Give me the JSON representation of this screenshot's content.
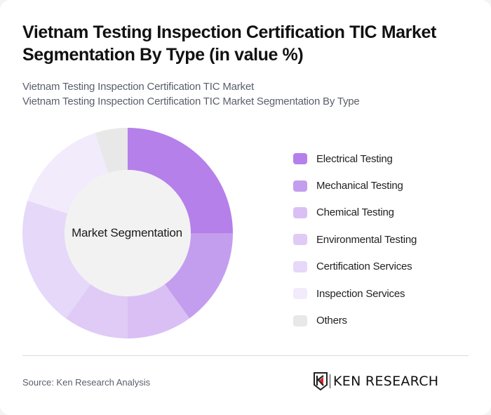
{
  "header": {
    "title": "Vietnam Testing Inspection Certification TIC Market Segmentation By Type (in value %)",
    "subtitle_line1": "Vietnam Testing Inspection Certification TIC Market",
    "subtitle_line2": "Vietnam Testing Inspection Certification TIC Market Segmentation By Type"
  },
  "chart": {
    "center_label": "Market Segmentation"
  },
  "legend": [
    {
      "label": "Electrical Testing",
      "color": "#B580EA"
    },
    {
      "label": "Mechanical Testing",
      "color": "#C49EEE"
    },
    {
      "label": "Chemical Testing",
      "color": "#DABFF5"
    },
    {
      "label": "Environmental Testing",
      "color": "#E0CAF6"
    },
    {
      "label": "Certification Services",
      "color": "#E6D8F9"
    },
    {
      "label": "Inspection Services",
      "color": "#F2EBFC"
    },
    {
      "label": "Others",
      "color": "#E8E8E8"
    }
  ],
  "footer": {
    "source": "Source: Ken Research Analysis",
    "logo_text": "KEN RESEARCH"
  },
  "chart_data": {
    "type": "pie",
    "variant": "donut",
    "title": "Vietnam Testing Inspection Certification TIC Market Segmentation By Type (in value %)",
    "center_label": "Market Segmentation",
    "categories": [
      "Electrical Testing",
      "Mechanical Testing",
      "Chemical Testing",
      "Environmental Testing",
      "Certification Services",
      "Inspection Services",
      "Others"
    ],
    "values": [
      25,
      15,
      10,
      10,
      20,
      15,
      5
    ],
    "unit": "%",
    "colors": [
      "#B580EA",
      "#C49EEE",
      "#DABFF5",
      "#E0CAF6",
      "#E6D8F9",
      "#F2EBFC",
      "#E8E8E8"
    ],
    "start_angle": "12 o'clock, clockwise",
    "legend_position": "right"
  }
}
